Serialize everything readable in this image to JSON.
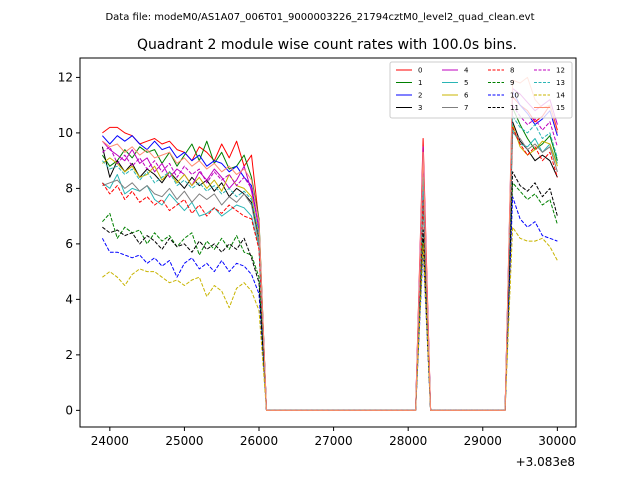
{
  "suptitle": "Data file: modeM0/AS1A07_006T01_9000003226_21794cztM0_level2_quad_clean.evt",
  "chart_data": {
    "type": "line",
    "title": "Quadrant 2 module wise count rates with 100.0s bins.",
    "xlabel": "",
    "ylabel": "",
    "x_offset_label": "+3.083e8",
    "xlim": [
      23600,
      30250
    ],
    "ylim": [
      -0.6,
      12.7
    ],
    "xticks": [
      24000,
      25000,
      26000,
      27000,
      28000,
      29000,
      30000
    ],
    "yticks": [
      0,
      2,
      4,
      6,
      8,
      10,
      12
    ],
    "grid": false,
    "legend_placement": "top-right",
    "legend_ncol": 4,
    "x": [
      23900,
      24000,
      24100,
      24200,
      24300,
      24400,
      24500,
      24600,
      24700,
      24800,
      24900,
      25000,
      25100,
      25200,
      25300,
      25400,
      25500,
      25600,
      25700,
      25800,
      25900,
      26000,
      26100,
      28100,
      28200,
      28300,
      28400,
      29300,
      29400,
      29500,
      29600,
      29700,
      29800,
      29900,
      30000
    ],
    "series": [
      {
        "name": "0",
        "color": "#ff0000",
        "dash": "solid",
        "values": [
          10.0,
          10.2,
          10.2,
          10.0,
          9.9,
          9.6,
          9.7,
          9.8,
          9.6,
          9.7,
          9.4,
          9.3,
          9.0,
          9.5,
          9.3,
          9.0,
          9.6,
          9.1,
          9.7,
          8.8,
          9.2,
          6.8,
          0,
          0,
          9.8,
          0,
          0,
          0,
          11.3,
          11.0,
          10.8,
          10.4,
          10.6,
          11.0,
          10.1
        ]
      },
      {
        "name": "1",
        "color": "#008000",
        "dash": "solid",
        "values": [
          9.2,
          8.8,
          9.0,
          9.4,
          9.1,
          9.5,
          9.3,
          9.4,
          8.9,
          9.3,
          8.8,
          9.2,
          9.6,
          9.0,
          9.7,
          8.9,
          9.3,
          8.7,
          8.8,
          9.2,
          8.4,
          6.9,
          0,
          0,
          8.6,
          0,
          0,
          0,
          10.9,
          10.3,
          9.8,
          9.4,
          9.6,
          9.9,
          9.0
        ]
      },
      {
        "name": "2",
        "color": "#0000ff",
        "dash": "solid",
        "values": [
          9.9,
          9.6,
          9.9,
          9.7,
          9.9,
          9.6,
          9.4,
          9.7,
          9.4,
          9.5,
          9.1,
          9.3,
          9.0,
          9.2,
          8.8,
          9.0,
          8.9,
          8.6,
          8.8,
          8.4,
          8.1,
          6.5,
          0,
          0,
          9.1,
          0,
          0,
          0,
          11.5,
          11.0,
          10.7,
          10.3,
          10.5,
          10.8,
          9.9
        ]
      },
      {
        "name": "3",
        "color": "#000000",
        "dash": "solid",
        "values": [
          9.5,
          8.4,
          9.0,
          8.6,
          8.9,
          8.4,
          8.7,
          8.5,
          8.2,
          8.6,
          8.3,
          8.0,
          8.4,
          8.1,
          8.3,
          7.9,
          8.2,
          7.7,
          8.0,
          7.8,
          7.5,
          6.2,
          0,
          0,
          8.2,
          0,
          0,
          0,
          10.4,
          9.7,
          9.4,
          9.0,
          9.2,
          9.0,
          8.4
        ]
      },
      {
        "name": "4",
        "color": "#bf00bf",
        "dash": "solid",
        "values": [
          9.7,
          9.4,
          9.2,
          9.0,
          9.4,
          8.9,
          9.1,
          8.6,
          8.9,
          8.4,
          8.7,
          8.5,
          8.1,
          8.6,
          8.3,
          8.7,
          8.4,
          8.0,
          8.3,
          8.8,
          7.9,
          6.6,
          0,
          0,
          9.5,
          0,
          0,
          0,
          11.6,
          11.4,
          11.1,
          10.8,
          11.0,
          11.2,
          10.3
        ]
      },
      {
        "name": "5",
        "color": "#2ab5b5",
        "dash": "solid",
        "values": [
          8.2,
          8.0,
          8.5,
          7.8,
          8.0,
          7.9,
          8.1,
          7.6,
          7.4,
          7.8,
          7.5,
          7.2,
          7.5,
          7.0,
          7.1,
          7.3,
          7.0,
          7.2,
          7.4,
          7.3,
          7.0,
          5.9,
          0,
          0,
          7.4,
          0,
          0,
          0,
          10.1,
          9.6,
          9.5,
          9.8,
          9.3,
          9.6,
          8.9
        ]
      },
      {
        "name": "6",
        "color": "#c8b400",
        "dash": "solid",
        "values": [
          8.9,
          9.1,
          8.9,
          8.6,
          8.8,
          8.4,
          8.5,
          8.8,
          8.3,
          8.6,
          8.2,
          8.5,
          8.1,
          8.4,
          8.0,
          8.3,
          7.9,
          8.5,
          8.1,
          8.0,
          7.7,
          6.3,
          0,
          0,
          8.3,
          0,
          0,
          0,
          10.3,
          9.5,
          9.2,
          9.4,
          9.7,
          9.6,
          8.8
        ]
      },
      {
        "name": "7",
        "color": "#7f7f7f",
        "dash": "solid",
        "values": [
          8.1,
          8.2,
          8.3,
          8.0,
          8.2,
          7.9,
          8.1,
          7.8,
          7.7,
          8.0,
          7.6,
          7.9,
          7.5,
          7.8,
          7.6,
          7.8,
          7.4,
          7.7,
          7.5,
          7.8,
          7.4,
          6.0,
          0,
          0,
          7.9,
          0,
          0,
          0,
          10.0,
          9.8,
          9.4,
          9.6,
          9.3,
          9.5,
          8.6
        ]
      },
      {
        "name": "8",
        "color": "#ff0000",
        "dash": "dashed",
        "values": [
          8.2,
          7.8,
          8.1,
          7.6,
          7.9,
          7.5,
          7.7,
          7.4,
          7.6,
          7.2,
          7.4,
          7.6,
          7.1,
          7.4,
          7.0,
          7.3,
          7.1,
          7.4,
          7.2,
          7.0,
          6.9,
          5.8,
          0,
          0,
          7.6,
          0,
          0,
          0,
          10.2,
          9.6,
          9.2,
          9.5,
          9.0,
          9.3,
          8.4
        ]
      },
      {
        "name": "9",
        "color": "#008000",
        "dash": "dashed",
        "values": [
          6.8,
          7.1,
          6.2,
          6.6,
          6.4,
          6.5,
          6.0,
          6.4,
          6.1,
          6.3,
          5.9,
          6.2,
          6.4,
          5.6,
          6.1,
          5.8,
          6.2,
          5.8,
          6.3,
          5.7,
          5.6,
          4.8,
          0,
          0,
          6.2,
          0,
          0,
          0,
          8.2,
          7.9,
          7.6,
          7.8,
          7.4,
          7.6,
          6.7
        ]
      },
      {
        "name": "10",
        "color": "#0000ff",
        "dash": "dashed",
        "values": [
          6.2,
          5.7,
          5.7,
          5.6,
          5.5,
          5.6,
          5.3,
          5.5,
          5.2,
          5.4,
          4.8,
          5.3,
          5.5,
          5.1,
          5.3,
          5.0,
          5.4,
          5.0,
          5.3,
          5.2,
          4.9,
          4.2,
          0,
          0,
          5.8,
          0,
          0,
          0,
          7.7,
          6.9,
          6.6,
          6.8,
          6.3,
          6.2,
          6.1
        ]
      },
      {
        "name": "11",
        "color": "#000000",
        "dash": "dashed",
        "values": [
          6.6,
          6.4,
          6.5,
          6.3,
          6.4,
          6.0,
          6.3,
          6.1,
          5.8,
          6.2,
          5.9,
          6.0,
          5.7,
          6.1,
          5.8,
          6.0,
          5.7,
          6.0,
          5.8,
          6.2,
          5.5,
          4.6,
          0,
          0,
          6.5,
          0,
          0,
          0,
          8.6,
          8.1,
          7.9,
          8.2,
          7.7,
          8.0,
          7.0
        ]
      },
      {
        "name": "12",
        "color": "#bf00bf",
        "dash": "dashed",
        "values": [
          9.3,
          9.5,
          8.9,
          9.2,
          8.8,
          9.1,
          8.7,
          9.0,
          8.6,
          8.9,
          8.4,
          8.8,
          8.5,
          8.7,
          8.2,
          8.6,
          8.3,
          8.5,
          8.1,
          8.4,
          8.0,
          6.6,
          0,
          0,
          8.8,
          0,
          0,
          0,
          11.0,
          10.6,
          10.3,
          10.5,
          10.1,
          10.4,
          9.5
        ]
      },
      {
        "name": "13",
        "color": "#2ab5b5",
        "dash": "dashed",
        "values": [
          9.0,
          8.7,
          8.8,
          8.5,
          8.7,
          8.3,
          8.6,
          8.2,
          8.4,
          8.6,
          8.1,
          8.3,
          8.0,
          8.2,
          7.9,
          8.1,
          7.8,
          8.0,
          7.7,
          7.9,
          7.6,
          6.3,
          0,
          0,
          8.4,
          0,
          0,
          0,
          10.6,
          10.2,
          10.0,
          10.3,
          9.8,
          10.0,
          9.1
        ]
      },
      {
        "name": "14",
        "color": "#c8b400",
        "dash": "dashed",
        "values": [
          4.8,
          5.0,
          4.8,
          4.5,
          4.9,
          5.1,
          5.0,
          5.0,
          4.8,
          4.6,
          4.7,
          4.5,
          4.7,
          4.8,
          4.1,
          4.5,
          4.3,
          3.7,
          4.4,
          4.6,
          4.3,
          3.6,
          0,
          0,
          6.0,
          0,
          0,
          0,
          6.6,
          6.2,
          6.1,
          6.1,
          6.2,
          5.9,
          5.4
        ]
      },
      {
        "name": "15",
        "color": "#ff8a70",
        "dash": "solid",
        "values": [
          9.7,
          9.5,
          9.6,
          9.3,
          9.5,
          9.2,
          9.4,
          9.1,
          9.2,
          9.3,
          8.9,
          9.1,
          8.8,
          9.0,
          8.7,
          8.9,
          8.6,
          8.8,
          8.5,
          8.7,
          8.3,
          6.8,
          0,
          0,
          9.3,
          0,
          0,
          0,
          11.9,
          11.8,
          12.0,
          11.2,
          10.9,
          11.0,
          10.0
        ]
      }
    ]
  }
}
